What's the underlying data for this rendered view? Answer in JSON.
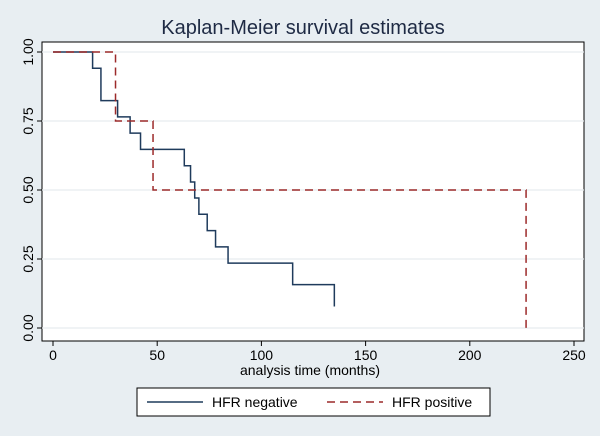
{
  "chart_data": {
    "type": "line",
    "step": true,
    "title": "Kaplan-Meier survival estimates",
    "xlabel": "analysis time (months)",
    "ylabel": "",
    "xlim": [
      0,
      250
    ],
    "ylim": [
      0,
      1
    ],
    "xticks": [
      "0",
      "50",
      "100",
      "150",
      "200",
      "250"
    ],
    "xtick_values": [
      0,
      50,
      100,
      150,
      200,
      250
    ],
    "yticks": [
      "0.00",
      "0.25",
      "0.50",
      "0.75",
      "1.00"
    ],
    "ytick_values": [
      0,
      0.25,
      0.5,
      0.75,
      1
    ],
    "grid": true,
    "legend_position": "bottom",
    "series": [
      {
        "name": "HFR negative",
        "color": "#1f3b5c",
        "dash": "solid",
        "x": [
          0,
          19,
          23,
          31,
          37,
          42,
          63,
          66,
          68,
          70,
          74,
          78,
          84,
          92,
          115,
          135
        ],
        "y": [
          1.0,
          0.941,
          0.824,
          0.765,
          0.706,
          0.647,
          0.588,
          0.529,
          0.471,
          0.412,
          0.353,
          0.294,
          0.235,
          0.235,
          0.157,
          0.078
        ],
        "end_x": 135
      },
      {
        "name": "HFR positive",
        "color": "#9c2a2a",
        "dash": "dashed",
        "x": [
          0,
          30,
          48,
          227
        ],
        "y": [
          1.0,
          0.75,
          0.5,
          0.0
        ],
        "end_x": 227
      }
    ]
  }
}
